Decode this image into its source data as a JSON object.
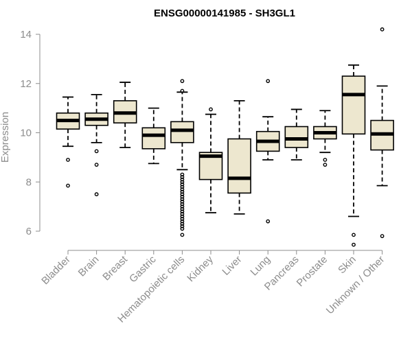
{
  "chart_data": {
    "type": "boxplot",
    "title": "ENSG00000141985 - SH3GL1",
    "xlabel": "",
    "ylabel": "Expression",
    "ylim": [
      5.2,
      14.5
    ],
    "yticks": [
      6,
      8,
      10,
      12,
      14
    ],
    "box_color": "#ede7cf",
    "median_color": "#000000",
    "categories": [
      "Bladder",
      "Brain",
      "Breast",
      "Gastric",
      "Hematopoietic cells",
      "Kidney",
      "Liver",
      "Lung",
      "Pancreas",
      "Prostate",
      "Skin",
      "Unknown / Other"
    ],
    "boxes": [
      {
        "label": "Bladder",
        "whisker_low": 9.45,
        "q1": 10.15,
        "median": 10.5,
        "q3": 10.8,
        "whisker_high": 11.45,
        "outliers": [
          8.9,
          7.85
        ]
      },
      {
        "label": "Brain",
        "whisker_low": 9.6,
        "q1": 10.3,
        "median": 10.55,
        "q3": 10.8,
        "whisker_high": 11.55,
        "outliers": [
          9.25,
          8.7,
          7.5
        ]
      },
      {
        "label": "Breast",
        "whisker_low": 9.4,
        "q1": 10.4,
        "median": 10.8,
        "q3": 11.3,
        "whisker_high": 12.05,
        "outliers": []
      },
      {
        "label": "Gastric",
        "whisker_low": 8.75,
        "q1": 9.35,
        "median": 9.9,
        "q3": 10.2,
        "whisker_high": 11.0,
        "outliers": []
      },
      {
        "label": "Hematopoietic cells",
        "whisker_low": 8.5,
        "q1": 9.6,
        "median": 10.1,
        "q3": 10.45,
        "whisker_high": 11.65,
        "outliers": [
          12.1,
          11.7,
          8.3,
          8.2,
          8.1,
          8.0,
          7.9,
          7.8,
          7.7,
          7.6,
          7.5,
          7.4,
          7.3,
          7.2,
          7.1,
          7.0,
          6.9,
          6.8,
          6.7,
          6.6,
          6.5,
          6.4,
          6.3,
          6.2,
          6.1,
          5.85
        ]
      },
      {
        "label": "Kidney",
        "whisker_low": 6.75,
        "q1": 8.1,
        "median": 9.05,
        "q3": 9.2,
        "whisker_high": 10.75,
        "outliers": [
          10.95
        ]
      },
      {
        "label": "Liver",
        "whisker_low": 6.7,
        "q1": 7.55,
        "median": 8.15,
        "q3": 9.75,
        "whisker_high": 11.3,
        "outliers": []
      },
      {
        "label": "Lung",
        "whisker_low": 8.9,
        "q1": 9.25,
        "median": 9.65,
        "q3": 10.05,
        "whisker_high": 10.65,
        "outliers": [
          12.1,
          6.4
        ]
      },
      {
        "label": "Pancreas",
        "whisker_low": 8.9,
        "q1": 9.4,
        "median": 9.75,
        "q3": 10.25,
        "whisker_high": 10.95,
        "outliers": []
      },
      {
        "label": "Prostate",
        "whisker_low": 9.2,
        "q1": 9.75,
        "median": 10.0,
        "q3": 10.25,
        "whisker_high": 10.9,
        "outliers": [
          8.9,
          8.7
        ]
      },
      {
        "label": "Skin",
        "whisker_low": 6.6,
        "q1": 9.95,
        "median": 11.55,
        "q3": 12.3,
        "whisker_high": 12.75,
        "outliers": [
          5.85,
          5.45
        ]
      },
      {
        "label": "Unknown / Other",
        "whisker_low": 7.85,
        "q1": 9.3,
        "median": 9.95,
        "q3": 10.5,
        "whisker_high": 11.9,
        "outliers": [
          14.2,
          5.8
        ]
      }
    ]
  }
}
